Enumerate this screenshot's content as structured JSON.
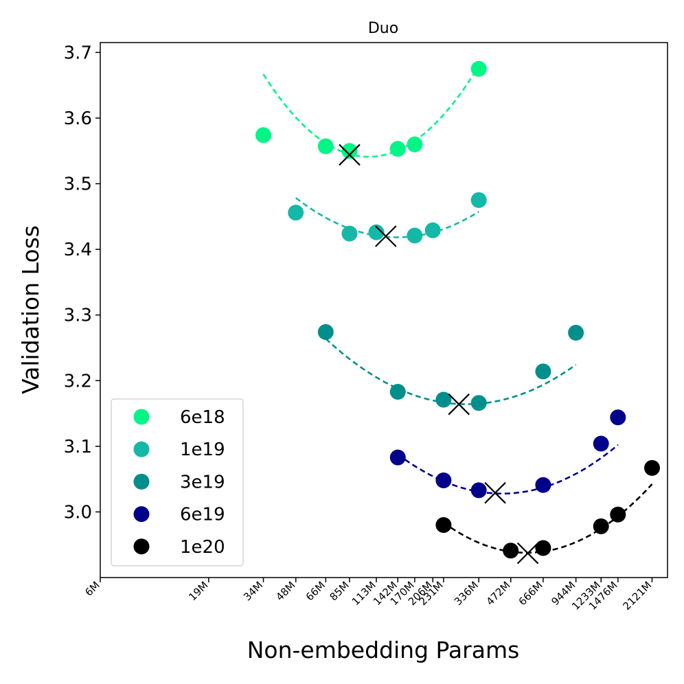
{
  "chart_data": {
    "type": "scatter",
    "title": "Duo",
    "xlabel": "Non-embedding Params",
    "ylabel": "Validation Loss",
    "x_scale": "log",
    "xlim": [
      6,
      2500
    ],
    "ylim": [
      2.9,
      3.715
    ],
    "x_ticks": [
      {
        "value": 6,
        "label": "6M"
      },
      {
        "value": 19,
        "label": "19M"
      },
      {
        "value": 34,
        "label": "34M"
      },
      {
        "value": 48,
        "label": "48M"
      },
      {
        "value": 66,
        "label": "66M"
      },
      {
        "value": 85,
        "label": "85M"
      },
      {
        "value": 113,
        "label": "113M"
      },
      {
        "value": 142,
        "label": "142M"
      },
      {
        "value": 170,
        "label": "170M"
      },
      {
        "value": 206,
        "label": "206M"
      },
      {
        "value": 231,
        "label": "231M"
      },
      {
        "value": 336,
        "label": "336M"
      },
      {
        "value": 472,
        "label": "472M"
      },
      {
        "value": 666,
        "label": "666M"
      },
      {
        "value": 944,
        "label": "944M"
      },
      {
        "value": 1233,
        "label": "1233M"
      },
      {
        "value": 1476,
        "label": "1476M"
      },
      {
        "value": 2121,
        "label": "2121M"
      }
    ],
    "y_ticks": [
      3.0,
      3.1,
      3.2,
      3.3,
      3.4,
      3.5,
      3.6,
      3.7
    ],
    "y_tick_labels": [
      "3.0",
      "3.1",
      "3.2",
      "3.3",
      "3.4",
      "3.5",
      "3.6",
      "3.7"
    ],
    "grid": false,
    "legend_position": "lower-left",
    "series": [
      {
        "name": "6e18",
        "color": "#00f587",
        "points": [
          [
            34,
            3.574
          ],
          [
            66,
            3.557
          ],
          [
            85,
            3.55
          ],
          [
            142,
            3.553
          ],
          [
            170,
            3.56
          ],
          [
            336,
            3.675
          ]
        ],
        "fit": {
          "a": 3.541,
          "x0": 104,
          "curvature": 0.1006
        },
        "fit_range": [
          34,
          336
        ],
        "optimum": [
          85,
          3.544
        ]
      },
      {
        "name": "1e19",
        "color": "#14b8a6",
        "points": [
          [
            48,
            3.456
          ],
          [
            85,
            3.424
          ],
          [
            113,
            3.426
          ],
          [
            170,
            3.421
          ],
          [
            206,
            3.429
          ],
          [
            336,
            3.475
          ]
        ],
        "fit": {
          "a": 3.4184,
          "x0": 141,
          "curvature": 0.0517
        },
        "fit_range": [
          48,
          336
        ],
        "optimum": [
          125,
          3.42
        ]
      },
      {
        "name": "3e19",
        "color": "#008f8c",
        "points": [
          [
            66,
            3.274
          ],
          [
            142,
            3.183
          ],
          [
            231,
            3.171
          ],
          [
            336,
            3.166
          ],
          [
            666,
            3.214
          ],
          [
            944,
            3.273
          ]
        ],
        "fit": {
          "a": 3.1641,
          "x0": 295,
          "curvature": 0.0445
        },
        "fit_range": [
          66,
          944
        ],
        "optimum": [
          272,
          3.164
        ]
      },
      {
        "name": "6e19",
        "color": "#00008b",
        "points": [
          [
            142,
            3.083
          ],
          [
            231,
            3.048
          ],
          [
            336,
            3.033
          ],
          [
            666,
            3.041
          ],
          [
            1233,
            3.104
          ],
          [
            1476,
            3.144
          ]
        ],
        "fit": {
          "a": 3.0279,
          "x0": 430,
          "curvature": 0.0488
        },
        "fit_range": [
          142,
          1476
        ],
        "optimum": [
          400,
          3.029
        ]
      },
      {
        "name": "1e20",
        "color": "#000000",
        "points": [
          [
            231,
            2.98
          ],
          [
            472,
            2.941
          ],
          [
            666,
            2.945
          ],
          [
            1233,
            2.978
          ],
          [
            1476,
            2.996
          ],
          [
            2121,
            3.067
          ]
        ],
        "fit": {
          "a": 2.9378,
          "x0": 559,
          "curvature": 0.0588
        },
        "fit_range": [
          231,
          2121
        ],
        "optimum": [
          566,
          2.937
        ]
      }
    ]
  }
}
